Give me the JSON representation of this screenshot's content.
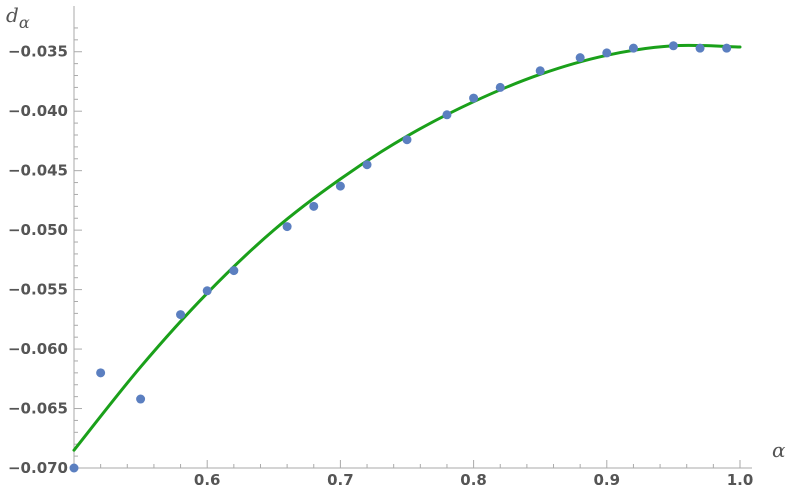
{
  "chart_data": {
    "type": "scatter",
    "xlabel": "α",
    "ylabel": {
      "main": "d",
      "sub": "α"
    },
    "xlim": [
      0.5,
      1.0
    ],
    "ylim": [
      -0.07,
      -0.0325
    ],
    "grid": false,
    "x_ticks": [
      0.6,
      0.7,
      0.8,
      0.9,
      1.0
    ],
    "x_tick_labels": [
      "0.6",
      "0.7",
      "0.8",
      "0.9",
      "1.0"
    ],
    "y_ticks": [
      -0.035,
      -0.04,
      -0.045,
      -0.05,
      -0.055,
      -0.06,
      -0.065,
      -0.07
    ],
    "y_tick_labels": [
      "−0.035",
      "−0.040",
      "−0.045",
      "−0.050",
      "−0.055",
      "−0.060",
      "−0.065",
      "−0.070"
    ],
    "series": [
      {
        "kind": "points",
        "color": "#5b7fc0",
        "x": [
          0.5,
          0.52,
          0.55,
          0.58,
          0.6,
          0.62,
          0.66,
          0.68,
          0.7,
          0.72,
          0.75,
          0.78,
          0.8,
          0.82,
          0.85,
          0.88,
          0.9,
          0.92,
          0.95,
          0.97,
          0.99
        ],
        "y": [
          -0.07,
          -0.062,
          -0.0642,
          -0.0571,
          -0.0551,
          -0.0534,
          -0.0497,
          -0.048,
          -0.0463,
          -0.0445,
          -0.0424,
          -0.0403,
          -0.0389,
          -0.038,
          -0.0366,
          -0.0355,
          -0.0351,
          -0.0347,
          -0.0345,
          -0.0347,
          -0.0347
        ]
      },
      {
        "kind": "fit-curve",
        "color": "#1aa01a",
        "x": [
          0.5,
          0.55,
          0.6,
          0.65,
          0.7,
          0.75,
          0.8,
          0.85,
          0.9,
          0.95,
          1.0
        ],
        "y": [
          -0.0685,
          -0.0615,
          -0.0553,
          -0.05,
          -0.0457,
          -0.0421,
          -0.0392,
          -0.0369,
          -0.0353,
          -0.0345,
          -0.0346
        ]
      }
    ]
  }
}
